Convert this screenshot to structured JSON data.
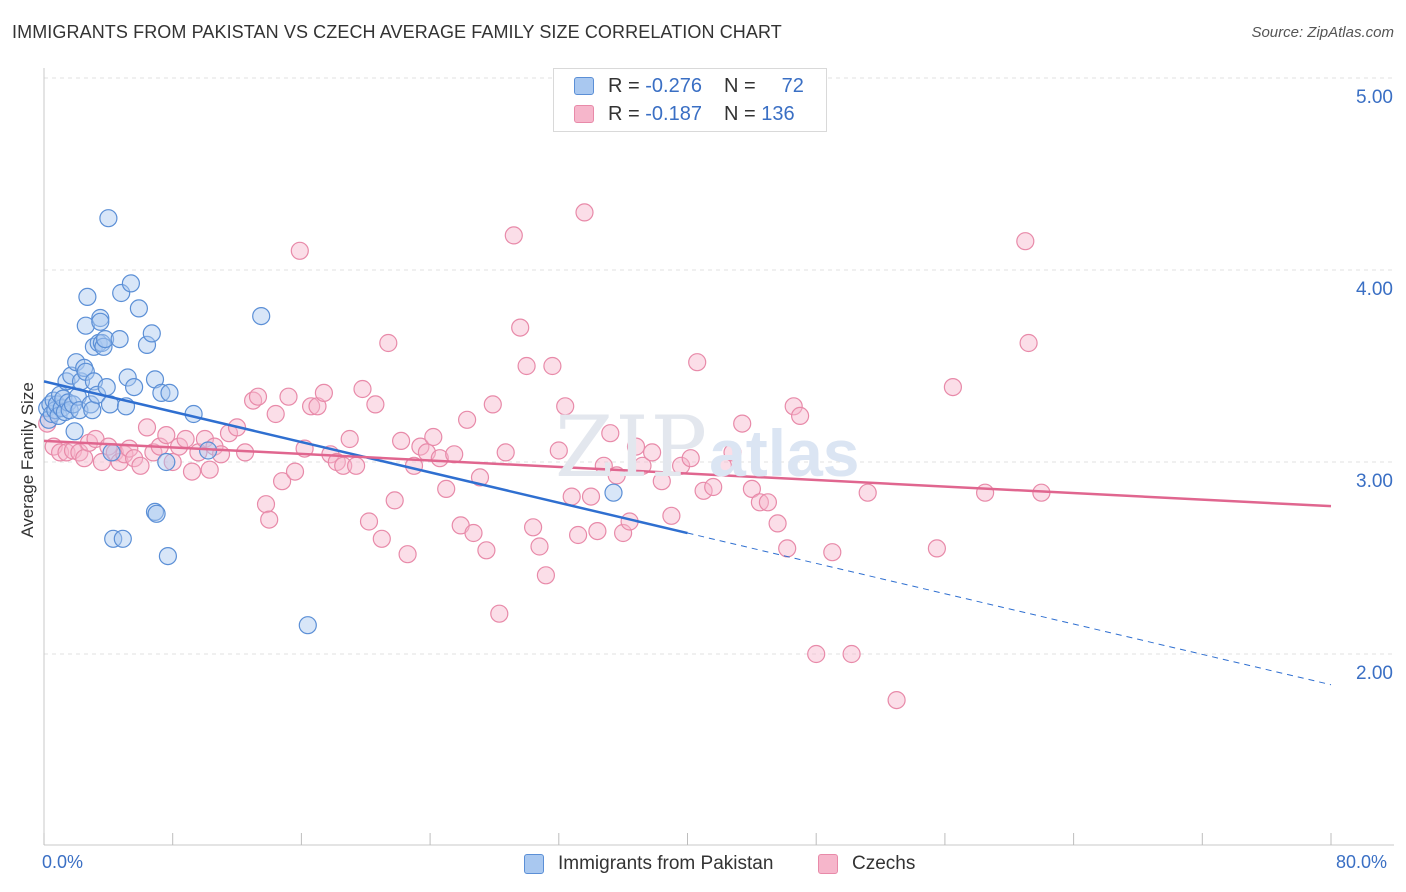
{
  "title": "IMMIGRANTS FROM PAKISTAN VS CZECH AVERAGE FAMILY SIZE CORRELATION CHART",
  "source": "Source: ZipAtlas.com",
  "watermark": {
    "zip": "ZIP",
    "atlas": "atlas"
  },
  "legend": {
    "rows": [
      {
        "r_label": "R =",
        "r_value": "-0.276",
        "n_label": "N =",
        "n_value": "72"
      },
      {
        "r_label": "R =",
        "r_value": "-0.187",
        "n_label": "N =",
        "n_value": "136"
      }
    ]
  },
  "bottom_legend": [
    "Immigrants from Pakistan",
    "Czechs"
  ],
  "colors": {
    "pakistan_fill": "#a9c8f0",
    "pakistan_stroke": "#5b8fd6",
    "pakistan_line": "#2f6fd0",
    "czech_fill": "#f6b6cb",
    "czech_stroke": "#e88aa9",
    "czech_line": "#e0668f",
    "grid": "#e2e2e2",
    "tick_label": "#3a6fc4"
  },
  "chart_data": {
    "type": "scatter",
    "title": "IMMIGRANTS FROM PAKISTAN VS CZECH AVERAGE FAMILY SIZE CORRELATION CHART",
    "xlabel": "",
    "ylabel": "Average Family Size",
    "xlim": [
      0,
      80
    ],
    "ylim": [
      1.0,
      5.1
    ],
    "x_tick_labels": [
      "0.0%",
      "80.0%"
    ],
    "y_ticks": [
      2.0,
      3.0,
      4.0,
      5.0
    ],
    "y_tick_labels": [
      "2.00",
      "3.00",
      "4.00",
      "5.00"
    ],
    "grid": true,
    "series": [
      {
        "name": "Immigrants from Pakistan",
        "r": -0.276,
        "n": 72,
        "trend": {
          "x0": 0.0,
          "y0": 3.42,
          "x1": 40.0,
          "y1": 2.63,
          "dash_to_x": 80.0,
          "dash_to_y": 1.84
        },
        "points": [
          [
            0.2,
            3.28
          ],
          [
            0.3,
            3.22
          ],
          [
            0.4,
            3.3
          ],
          [
            0.5,
            3.25
          ],
          [
            0.6,
            3.32
          ],
          [
            0.7,
            3.27
          ],
          [
            0.8,
            3.3
          ],
          [
            0.9,
            3.24
          ],
          [
            1.0,
            3.35
          ],
          [
            1.1,
            3.28
          ],
          [
            1.2,
            3.33
          ],
          [
            1.3,
            3.26
          ],
          [
            1.4,
            3.42
          ],
          [
            1.5,
            3.31
          ],
          [
            1.6,
            3.27
          ],
          [
            1.7,
            3.45
          ],
          [
            1.8,
            3.3
          ],
          [
            1.9,
            3.16
          ],
          [
            2.0,
            3.52
          ],
          [
            2.1,
            3.34
          ],
          [
            2.2,
            3.27
          ],
          [
            2.3,
            3.42
          ],
          [
            2.5,
            3.49
          ],
          [
            2.6,
            3.71
          ],
          [
            2.6,
            3.47
          ],
          [
            2.7,
            3.86
          ],
          [
            2.9,
            3.3
          ],
          [
            3.0,
            3.27
          ],
          [
            3.1,
            3.6
          ],
          [
            3.1,
            3.42
          ],
          [
            3.3,
            3.35
          ],
          [
            3.4,
            3.62
          ],
          [
            3.5,
            3.75
          ],
          [
            3.5,
            3.73
          ],
          [
            3.6,
            3.62
          ],
          [
            3.7,
            3.6
          ],
          [
            3.8,
            3.64
          ],
          [
            3.9,
            3.39
          ],
          [
            4.0,
            4.27
          ],
          [
            4.1,
            3.3
          ],
          [
            4.2,
            3.05
          ],
          [
            4.3,
            2.6
          ],
          [
            4.7,
            3.64
          ],
          [
            4.8,
            3.88
          ],
          [
            4.9,
            2.6
          ],
          [
            5.1,
            3.29
          ],
          [
            5.2,
            3.44
          ],
          [
            5.4,
            3.93
          ],
          [
            5.6,
            3.39
          ],
          [
            5.9,
            3.8
          ],
          [
            6.4,
            3.61
          ],
          [
            6.7,
            3.67
          ],
          [
            6.9,
            3.43
          ],
          [
            6.9,
            2.74
          ],
          [
            7.0,
            2.73
          ],
          [
            7.3,
            3.36
          ],
          [
            7.6,
            3.0
          ],
          [
            7.7,
            2.51
          ],
          [
            7.8,
            3.36
          ],
          [
            9.3,
            3.25
          ],
          [
            10.2,
            3.06
          ],
          [
            13.5,
            3.76
          ],
          [
            16.4,
            2.15
          ],
          [
            35.4,
            2.84
          ]
        ]
      },
      {
        "name": "Czechs",
        "r": -0.187,
        "n": 136,
        "trend": {
          "x0": 0.0,
          "y0": 3.11,
          "x1": 80.0,
          "y1": 2.77
        },
        "points": [
          [
            0.2,
            3.2
          ],
          [
            0.6,
            3.08
          ],
          [
            1.0,
            3.05
          ],
          [
            1.4,
            3.05
          ],
          [
            1.8,
            3.06
          ],
          [
            2.2,
            3.05
          ],
          [
            2.5,
            3.02
          ],
          [
            2.8,
            3.1
          ],
          [
            3.2,
            3.12
          ],
          [
            3.6,
            3.0
          ],
          [
            4.0,
            3.08
          ],
          [
            4.4,
            3.05
          ],
          [
            4.7,
            3.0
          ],
          [
            5.0,
            3.04
          ],
          [
            5.3,
            3.07
          ],
          [
            5.6,
            3.02
          ],
          [
            6.0,
            2.98
          ],
          [
            6.4,
            3.18
          ],
          [
            6.8,
            3.05
          ],
          [
            7.2,
            3.08
          ],
          [
            7.6,
            3.14
          ],
          [
            8.0,
            3.0
          ],
          [
            8.4,
            3.08
          ],
          [
            8.8,
            3.12
          ],
          [
            9.2,
            2.95
          ],
          [
            9.6,
            3.05
          ],
          [
            10.0,
            3.12
          ],
          [
            10.3,
            2.96
          ],
          [
            10.6,
            3.08
          ],
          [
            11.0,
            3.04
          ],
          [
            11.5,
            3.15
          ],
          [
            12.0,
            3.18
          ],
          [
            12.5,
            3.05
          ],
          [
            13.0,
            3.32
          ],
          [
            13.3,
            3.34
          ],
          [
            13.8,
            2.78
          ],
          [
            14.0,
            2.7
          ],
          [
            14.4,
            3.25
          ],
          [
            14.8,
            2.9
          ],
          [
            15.2,
            3.34
          ],
          [
            15.6,
            2.95
          ],
          [
            15.9,
            4.1
          ],
          [
            16.2,
            3.07
          ],
          [
            16.6,
            3.29
          ],
          [
            17.0,
            3.29
          ],
          [
            17.4,
            3.36
          ],
          [
            17.8,
            3.04
          ],
          [
            18.2,
            3.0
          ],
          [
            18.6,
            2.98
          ],
          [
            19.0,
            3.12
          ],
          [
            19.4,
            2.98
          ],
          [
            19.8,
            3.38
          ],
          [
            20.2,
            2.69
          ],
          [
            20.6,
            3.3
          ],
          [
            21.0,
            2.6
          ],
          [
            21.4,
            3.62
          ],
          [
            21.8,
            2.8
          ],
          [
            22.2,
            3.11
          ],
          [
            22.6,
            2.52
          ],
          [
            23.0,
            2.98
          ],
          [
            23.4,
            3.08
          ],
          [
            23.8,
            3.05
          ],
          [
            24.2,
            3.13
          ],
          [
            24.6,
            3.02
          ],
          [
            25.0,
            2.86
          ],
          [
            25.5,
            3.04
          ],
          [
            25.9,
            2.67
          ],
          [
            26.3,
            3.22
          ],
          [
            26.7,
            2.63
          ],
          [
            27.1,
            2.92
          ],
          [
            27.5,
            2.54
          ],
          [
            27.9,
            3.3
          ],
          [
            28.3,
            2.21
          ],
          [
            28.7,
            3.05
          ],
          [
            29.2,
            4.18
          ],
          [
            29.6,
            3.7
          ],
          [
            30.0,
            3.5
          ],
          [
            30.4,
            2.66
          ],
          [
            30.8,
            2.56
          ],
          [
            31.2,
            2.41
          ],
          [
            31.6,
            3.5
          ],
          [
            32.0,
            3.06
          ],
          [
            32.4,
            3.29
          ],
          [
            32.8,
            2.82
          ],
          [
            33.2,
            2.62
          ],
          [
            33.6,
            4.3
          ],
          [
            34.0,
            2.82
          ],
          [
            34.4,
            2.64
          ],
          [
            34.8,
            2.98
          ],
          [
            35.2,
            3.15
          ],
          [
            35.6,
            2.93
          ],
          [
            36.0,
            2.63
          ],
          [
            36.4,
            2.69
          ],
          [
            36.8,
            3.08
          ],
          [
            37.2,
            2.98
          ],
          [
            37.8,
            3.05
          ],
          [
            38.4,
            2.9
          ],
          [
            39.0,
            2.72
          ],
          [
            39.6,
            2.98
          ],
          [
            40.2,
            3.02
          ],
          [
            40.6,
            3.52
          ],
          [
            41.0,
            2.85
          ],
          [
            41.6,
            2.87
          ],
          [
            42.2,
            2.98
          ],
          [
            42.8,
            3.05
          ],
          [
            43.4,
            3.2
          ],
          [
            44.0,
            2.86
          ],
          [
            44.5,
            2.79
          ],
          [
            45.0,
            2.79
          ],
          [
            45.6,
            2.68
          ],
          [
            46.2,
            2.55
          ],
          [
            46.6,
            3.29
          ],
          [
            47.0,
            3.24
          ],
          [
            48.0,
            2.0
          ],
          [
            49.0,
            2.53
          ],
          [
            50.2,
            2.0
          ],
          [
            51.2,
            2.84
          ],
          [
            53.0,
            1.76
          ],
          [
            55.5,
            2.55
          ],
          [
            56.5,
            3.39
          ],
          [
            58.5,
            2.84
          ],
          [
            61.0,
            4.15
          ],
          [
            61.2,
            3.62
          ],
          [
            62.0,
            2.84
          ]
        ]
      }
    ]
  }
}
